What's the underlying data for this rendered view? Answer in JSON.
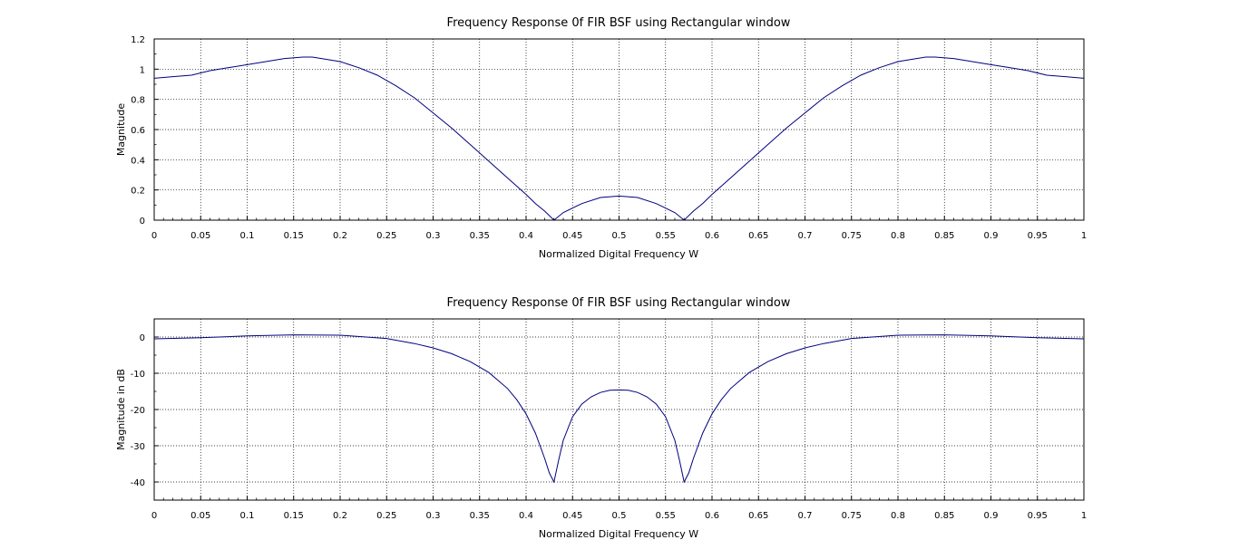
{
  "colors": {
    "background": "#ffffff",
    "curve": "#00007f",
    "axes": "#000000",
    "grid": "#000000"
  },
  "chart_data": [
    {
      "type": "line",
      "title": "Frequency Response 0f FIR BSF using Rectangular window",
      "xlabel": "Normalized Digital Frequency W",
      "ylabel": "Magnitude",
      "xlim": [
        0,
        1
      ],
      "ylim": [
        0,
        1.2
      ],
      "xticks": [
        0,
        0.05,
        0.1,
        0.15,
        0.2,
        0.25,
        0.3,
        0.35,
        0.4,
        0.45,
        0.5,
        0.55,
        0.6,
        0.65,
        0.7,
        0.75,
        0.8,
        0.85,
        0.9,
        0.95,
        1
      ],
      "xtick_labels": [
        "0",
        "0.05",
        "0.1",
        "0.15",
        "0.2",
        "0.25",
        "0.3",
        "0.35",
        "0.4",
        "0.45",
        "0.5",
        "0.55",
        "0.6",
        "0.65",
        "0.7",
        "0.75",
        "0.8",
        "0.85",
        "0.9",
        "0.95",
        "1"
      ],
      "yticks": [
        0,
        0.2,
        0.4,
        0.6,
        0.8,
        1,
        1.2
      ],
      "ytick_labels": [
        "0",
        "0.2",
        "0.4",
        "0.6",
        "0.8",
        "1",
        "1.2"
      ],
      "grid": true,
      "series": [
        {
          "x": [
            0,
            0.02,
            0.04,
            0.06,
            0.08,
            0.1,
            0.12,
            0.14,
            0.16,
            0.17,
            0.18,
            0.2,
            0.22,
            0.24,
            0.26,
            0.28,
            0.3,
            0.32,
            0.34,
            0.36,
            0.38,
            0.4,
            0.41,
            0.42,
            0.43,
            0.44,
            0.46,
            0.48,
            0.5,
            0.52,
            0.54,
            0.56,
            0.57,
            0.58,
            0.59,
            0.6,
            0.62,
            0.64,
            0.66,
            0.68,
            0.7,
            0.72,
            0.74,
            0.76,
            0.78,
            0.8,
            0.82,
            0.83,
            0.84,
            0.86,
            0.88,
            0.9,
            0.92,
            0.94,
            0.96,
            0.98,
            1.0
          ],
          "values": [
            0.94,
            0.95,
            0.96,
            0.99,
            1.01,
            1.03,
            1.05,
            1.07,
            1.08,
            1.08,
            1.07,
            1.05,
            1.01,
            0.96,
            0.89,
            0.81,
            0.71,
            0.61,
            0.5,
            0.39,
            0.28,
            0.17,
            0.11,
            0.06,
            0.0,
            0.05,
            0.11,
            0.15,
            0.16,
            0.15,
            0.11,
            0.05,
            0.0,
            0.06,
            0.11,
            0.17,
            0.28,
            0.39,
            0.5,
            0.61,
            0.71,
            0.81,
            0.89,
            0.96,
            1.01,
            1.05,
            1.07,
            1.08,
            1.08,
            1.07,
            1.05,
            1.03,
            1.01,
            0.99,
            0.96,
            0.95,
            0.94
          ]
        }
      ]
    },
    {
      "type": "line",
      "title": "Frequency Response 0f FIR BSF using Rectangular window",
      "xlabel": "Normalized Digital Frequency W",
      "ylabel": "Magnitude in dB",
      "xlim": [
        0,
        1
      ],
      "ylim": [
        -45,
        5
      ],
      "xticks": [
        0,
        0.05,
        0.1,
        0.15,
        0.2,
        0.25,
        0.3,
        0.35,
        0.4,
        0.45,
        0.5,
        0.55,
        0.6,
        0.65,
        0.7,
        0.75,
        0.8,
        0.85,
        0.9,
        0.95,
        1
      ],
      "xtick_labels": [
        "0",
        "0.05",
        "0.1",
        "0.15",
        "0.2",
        "0.25",
        "0.3",
        "0.35",
        "0.4",
        "0.45",
        "0.5",
        "0.55",
        "0.6",
        "0.65",
        "0.7",
        "0.75",
        "0.8",
        "0.85",
        "0.9",
        "0.95",
        "1"
      ],
      "yticks": [
        -40,
        -30,
        -20,
        -10,
        0
      ],
      "ytick_labels": [
        "-40",
        "-30",
        "-20",
        "-10",
        "0"
      ],
      "grid": true,
      "series": [
        {
          "x": [
            0,
            0.05,
            0.1,
            0.15,
            0.2,
            0.25,
            0.28,
            0.3,
            0.32,
            0.34,
            0.36,
            0.38,
            0.39,
            0.4,
            0.41,
            0.42,
            0.425,
            0.43,
            0.435,
            0.44,
            0.45,
            0.46,
            0.47,
            0.48,
            0.49,
            0.5,
            0.51,
            0.52,
            0.53,
            0.54,
            0.55,
            0.56,
            0.565,
            0.57,
            0.575,
            0.58,
            0.59,
            0.6,
            0.61,
            0.62,
            0.64,
            0.66,
            0.68,
            0.7,
            0.72,
            0.75,
            0.8,
            0.85,
            0.9,
            0.95,
            1.0
          ],
          "values": [
            -0.5,
            -0.2,
            0.3,
            0.6,
            0.5,
            -0.4,
            -1.8,
            -3.0,
            -4.6,
            -6.8,
            -9.8,
            -14.2,
            -17.3,
            -21.2,
            -26.5,
            -33.5,
            -37.5,
            -40,
            -34,
            -28.5,
            -22.0,
            -18.5,
            -16.5,
            -15.3,
            -14.7,
            -14.6,
            -14.7,
            -15.3,
            -16.5,
            -18.5,
            -22.0,
            -28.5,
            -34,
            -40,
            -37.5,
            -33.5,
            -26.5,
            -21.2,
            -17.3,
            -14.2,
            -9.8,
            -6.8,
            -4.6,
            -3.0,
            -1.8,
            -0.4,
            0.5,
            0.6,
            0.3,
            -0.2,
            -0.5
          ]
        }
      ]
    }
  ]
}
